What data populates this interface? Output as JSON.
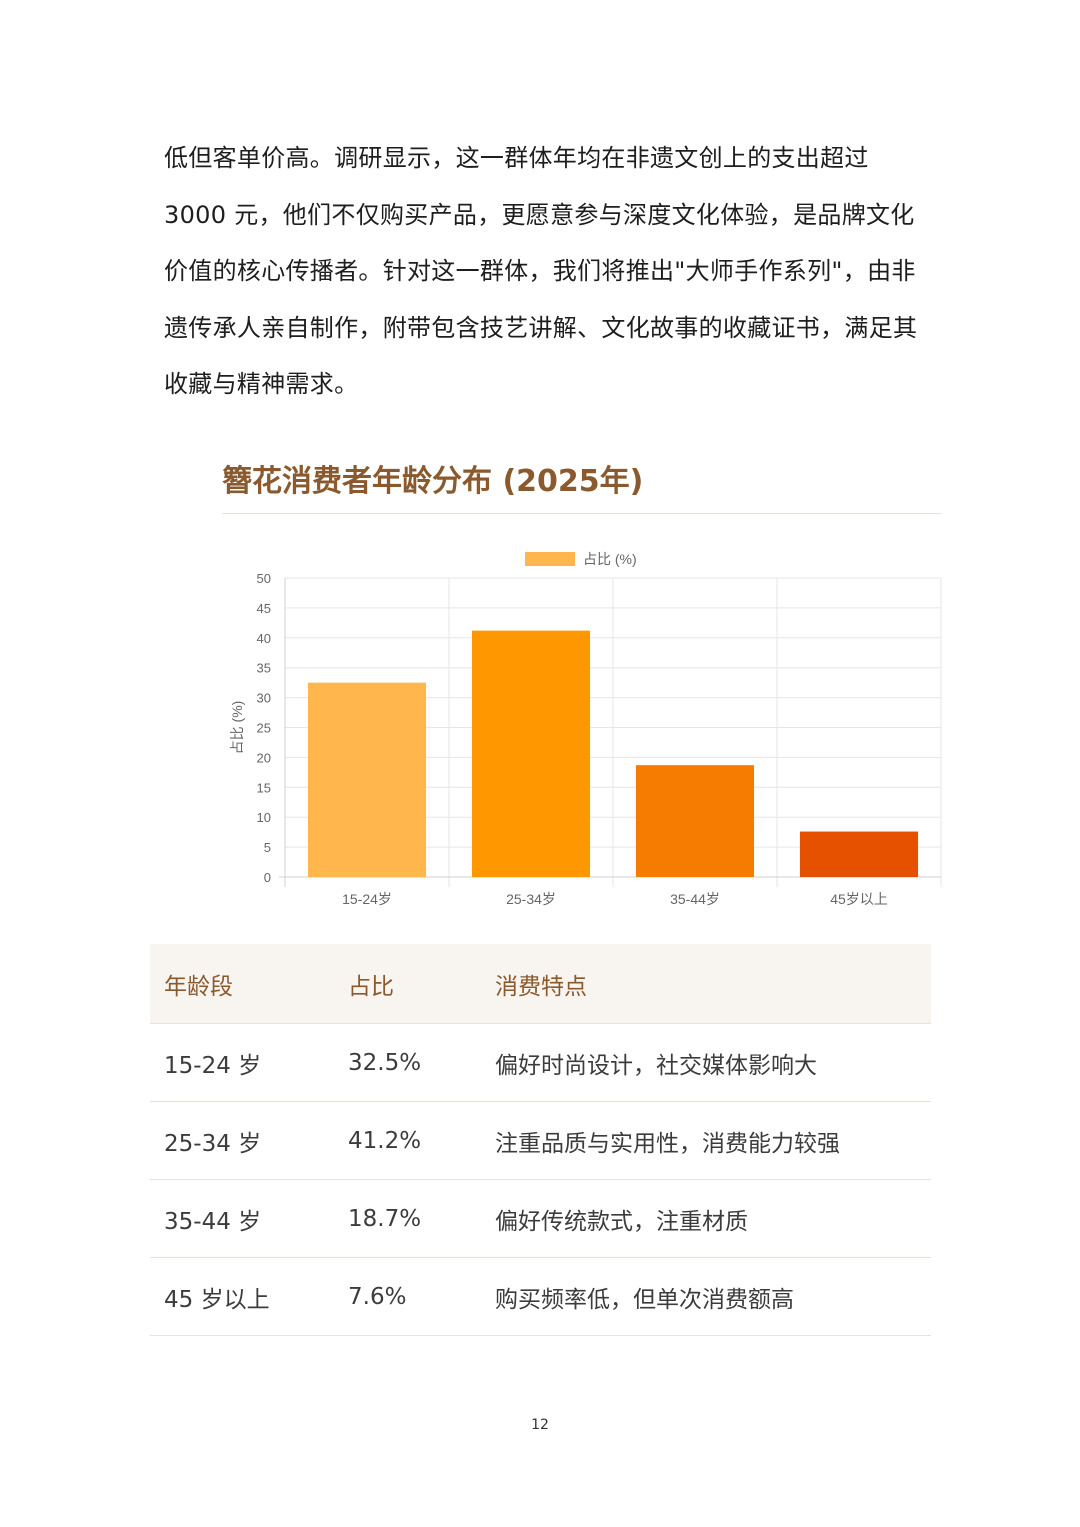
{
  "paragraph": "低但客单价高。调研显示，这一群体年均在非遗文创上的支出超过 3000 元，他们不仅购买产品，更愿意参与深度文化体验，是品牌文化价值的核心传播者。针对这一群体，我们将推出\"大师手作系列\"，由非遗传承人亲自制作，附带包含技艺讲解、文化故事的收藏证书，满足其收藏与精神需求。",
  "chart_data": {
    "type": "bar",
    "title": "簪花消费者年龄分布 (2025年)",
    "categories": [
      "15-24岁",
      "25-34岁",
      "35-44岁",
      "45岁以上"
    ],
    "series": [
      {
        "name": "占比 (%)",
        "values": [
          32.5,
          41.2,
          18.7,
          7.6
        ]
      }
    ],
    "colors": [
      "#ffb74d",
      "#ff9800",
      "#f57c00",
      "#e65100"
    ],
    "legend_color": "#ffb74d",
    "ylabel": "占比 (%)",
    "xlabel": "",
    "ylim": [
      0,
      50
    ],
    "yticks": [
      0,
      5,
      10,
      15,
      20,
      25,
      30,
      35,
      40,
      45,
      50
    ],
    "grid": true,
    "legend_position": "top"
  },
  "table": {
    "headers": [
      "年龄段",
      "占比",
      "消费特点"
    ],
    "rows": [
      [
        "15-24 岁",
        "32.5%",
        "偏好时尚设计，社交媒体影响大"
      ],
      [
        "25-34 岁",
        "41.2%",
        "注重品质与实用性，消费能力较强"
      ],
      [
        "35-44 岁",
        "18.7%",
        "偏好传统款式，注重材质"
      ],
      [
        "45 岁以上",
        "7.6%",
        "购买频率低，但单次消费额高"
      ]
    ]
  },
  "page_number": "12"
}
